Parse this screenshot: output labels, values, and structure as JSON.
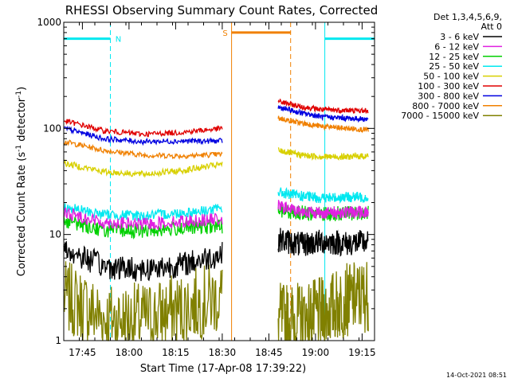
{
  "chart_data": {
    "type": "line",
    "title": "RHESSI Observing Summary Count Rates, Corrected",
    "xlabel": "Start Time (17-Apr-08 17:39:22)",
    "ylabel_main": "Corrected Count Rate (s",
    "ylabel_sup1": "-1",
    "ylabel_mid": " detector",
    "ylabel_sup2": "-1",
    "ylabel_end": ")",
    "y_scale": "log",
    "ylim": [
      1,
      1000
    ],
    "xlim_minutes": [
      0,
      100
    ],
    "x_ticks": [
      {
        "t": 6,
        "label": "17:45"
      },
      {
        "t": 21,
        "label": "18:00"
      },
      {
        "t": 36,
        "label": "18:15"
      },
      {
        "t": 51,
        "label": "18:30"
      },
      {
        "t": 66,
        "label": "18:45"
      },
      {
        "t": 81,
        "label": "19:00"
      },
      {
        "t": 96,
        "label": "19:15"
      }
    ],
    "y_ticks": [
      {
        "v": 1,
        "label": "1"
      },
      {
        "v": 10,
        "label": "10"
      },
      {
        "v": 100,
        "label": "100"
      },
      {
        "v": 1000,
        "label": "1000"
      }
    ],
    "legend_header": [
      "Det 1,3,4,5,6,9,",
      "Att 0"
    ],
    "legend_position": "right",
    "series": [
      {
        "name": "3 - 6 keV",
        "color": "#000000",
        "seg1": [
          7.2,
          5.0,
          4.7,
          5.2,
          6.5
        ],
        "seg2": [
          9.0,
          8.0,
          8.6,
          8.2,
          8.5
        ],
        "noise": 0.12
      },
      {
        "name": "6 - 12 keV",
        "color": "#e020e0",
        "seg1": [
          16.0,
          13.0,
          12.5,
          13.3,
          14.0
        ],
        "seg2": [
          18.5,
          16.5,
          16.0,
          16.2,
          16.3
        ],
        "noise": 0.06
      },
      {
        "name": "12 - 25 keV",
        "color": "#00d000",
        "seg1": [
          13.5,
          11.0,
          10.8,
          11.5,
          12.0
        ],
        "seg2": [
          17.0,
          16.0,
          15.6,
          15.8,
          16.0
        ],
        "noise": 0.07
      },
      {
        "name": "25 - 50 keV",
        "color": "#00e8f0",
        "seg1": [
          18.0,
          15.5,
          15.0,
          16.0,
          17.5
        ],
        "seg2": [
          25.0,
          23.0,
          22.0,
          22.5,
          22.5
        ],
        "noise": 0.05
      },
      {
        "name": "50 - 100 keV",
        "color": "#d8d000",
        "seg1": [
          47.0,
          39.0,
          37.0,
          40.0,
          46.0
        ],
        "seg2": [
          62.0,
          56.0,
          54.0,
          54.0,
          55.0
        ],
        "noise": 0.03
      },
      {
        "name": "100 - 300 keV",
        "color": "#e00000",
        "seg1": [
          118.0,
          95.0,
          88.0,
          92.0,
          100.0
        ],
        "seg2": [
          180.0,
          160.0,
          150.0,
          148.0,
          146.0
        ],
        "noise": 0.025
      },
      {
        "name": "300 - 800 keV",
        "color": "#0000e0",
        "seg1": [
          100.0,
          80.0,
          75.0,
          76.0,
          76.0
        ],
        "seg2": [
          158.0,
          140.0,
          128.0,
          125.0,
          122.0
        ],
        "noise": 0.025
      },
      {
        "name": "800 - 7000 keV",
        "color": "#f08000",
        "seg1": [
          75.0,
          62.0,
          56.0,
          55.0,
          57.0
        ],
        "seg2": [
          125.0,
          112.0,
          104.0,
          100.0,
          97.0
        ],
        "noise": 0.025
      },
      {
        "name": "7000 - 15000 keV",
        "color": "#808000",
        "seg1": [
          2.6,
          1.6,
          1.6,
          2.0,
          2.6
        ],
        "seg2": [
          1.6,
          1.6,
          1.8,
          2.4,
          2.7
        ],
        "noise": 0.35
      }
    ],
    "seg1_t": [
      0,
      51
    ],
    "seg2_t": [
      69,
      98
    ],
    "annotations": [
      {
        "kind": "night",
        "label": "N",
        "color": "#00e8f0",
        "start_t": 0,
        "end_t": 15,
        "level": 700
      },
      {
        "kind": "night",
        "label": "",
        "color": "#00e8f0",
        "start_t": 84,
        "end_t": 100,
        "level": 700
      },
      {
        "kind": "saa",
        "label": "S",
        "color": "#f08000",
        "start_t": 54,
        "end_t": 73,
        "level": 800
      }
    ]
  },
  "footer": {
    "timestamp": "14-Oct-2021 08:51"
  }
}
